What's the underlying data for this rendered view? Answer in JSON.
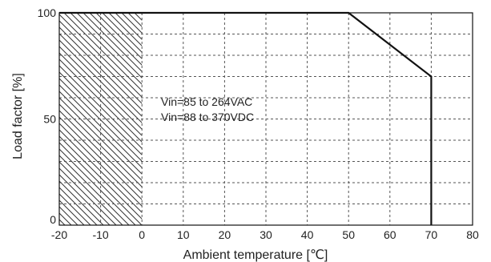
{
  "chart_data": {
    "type": "line",
    "title": "",
    "xlabel": "Ambient temperature [℃]",
    "ylabel": "Load factor [%]",
    "xlim": [
      -20,
      80
    ],
    "ylim": [
      0,
      100
    ],
    "x_ticks": [
      -20,
      -10,
      0,
      10,
      20,
      30,
      40,
      50,
      60,
      70,
      80
    ],
    "y_ticks": [
      0,
      50,
      100
    ],
    "y_minor_grid_step": 10,
    "grid": true,
    "grid_style": "dashed",
    "hatched_region": {
      "x_from": -20,
      "x_to": 0
    },
    "series": [
      {
        "points": [
          {
            "x": -20,
            "y": 100
          },
          {
            "x": 50,
            "y": 100
          },
          {
            "x": 70,
            "y": 70
          },
          {
            "x": 70,
            "y": 0
          }
        ]
      }
    ],
    "annotations": [
      "Vin=85 to 264VAC",
      "Vin=88 to 370VDC"
    ],
    "colors": {
      "line": "#111111",
      "grid": "#555555",
      "hatch": "#333333",
      "frame": "#111111"
    }
  }
}
